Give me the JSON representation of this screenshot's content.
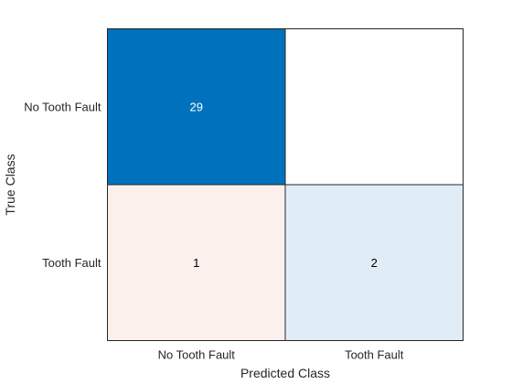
{
  "chart_data": {
    "type": "heatmap",
    "title": "",
    "xlabel": "Predicted Class",
    "ylabel": "True Class",
    "x_categories": [
      "No Tooth Fault",
      "Tooth Fault"
    ],
    "y_categories": [
      "No Tooth Fault",
      "Tooth Fault"
    ],
    "cells": [
      {
        "row": 0,
        "col": 0,
        "value": 29,
        "label": "29",
        "color": "#0072bd",
        "text_color": "#ffffff"
      },
      {
        "row": 0,
        "col": 1,
        "value": 0,
        "label": "",
        "color": "#ffffff",
        "text_color": "#000000"
      },
      {
        "row": 1,
        "col": 0,
        "value": 1,
        "label": "1",
        "color": "#fbf0ec",
        "text_color": "#000000"
      },
      {
        "row": 1,
        "col": 1,
        "value": 2,
        "label": "2",
        "color": "#e1edf6",
        "text_color": "#000000"
      }
    ],
    "grid": true,
    "legend": "none"
  }
}
